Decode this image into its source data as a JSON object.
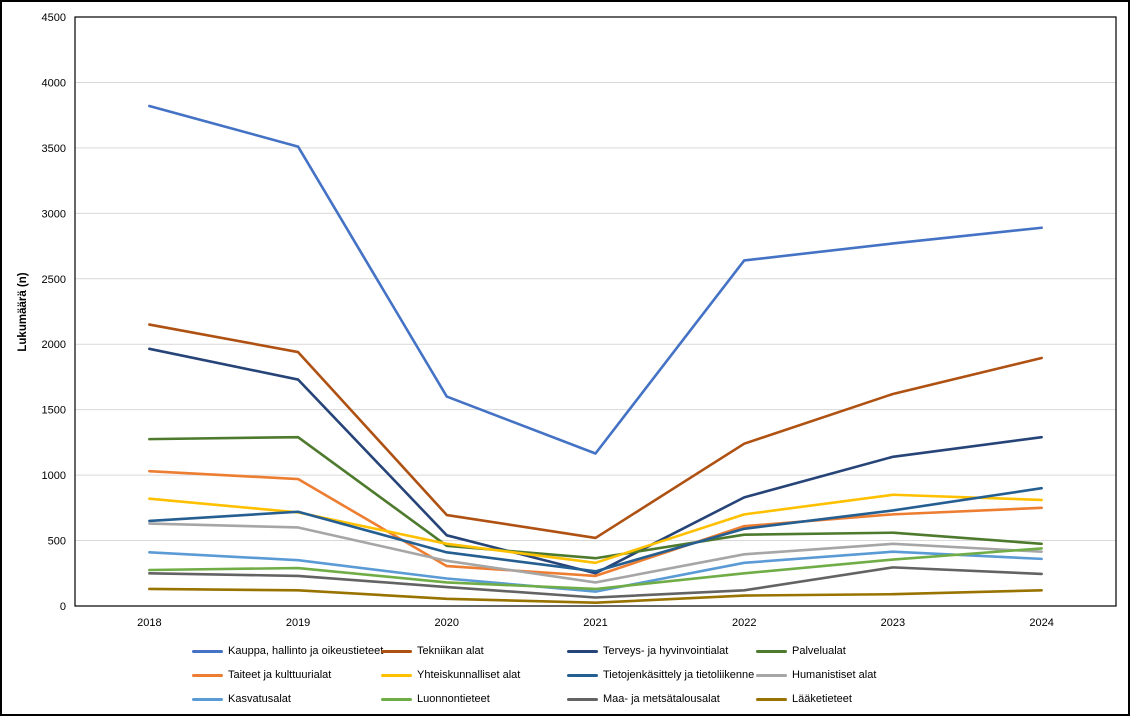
{
  "figure": {
    "background": "#FFFFFF",
    "border_color": "#000000",
    "grid_color": "#D9D9D9",
    "axis_color": "#000000"
  },
  "chart_data": {
    "type": "line",
    "title": "",
    "xlabel": "",
    "ylabel": "Lukumäärä (n)",
    "ylim": [
      0,
      4500
    ],
    "ytick_step": 500,
    "yticks": [
      0,
      500,
      1000,
      1500,
      2000,
      2500,
      3000,
      3500,
      4000,
      4500
    ],
    "grid": true,
    "legend_position": "bottom",
    "legend_columns": 4,
    "categories": [
      "2018",
      "2019",
      "2020",
      "2021",
      "2022",
      "2023",
      "2024"
    ],
    "series": [
      {
        "name": "Kauppa, hallinto ja oikeustieteet",
        "color": "#4472C4",
        "values": [
          3820,
          3510,
          1600,
          1165,
          2640,
          2770,
          2890
        ]
      },
      {
        "name": "Tekniikan alat",
        "color": "#AE5112",
        "values": [
          2150,
          1940,
          695,
          520,
          1240,
          1620,
          1895
        ]
      },
      {
        "name": "Terveys- ja hyvinvointialat",
        "color": "#264478",
        "values": [
          1965,
          1730,
          540,
          250,
          830,
          1140,
          1290
        ]
      },
      {
        "name": "Palvelualat",
        "color": "#4E7A2E",
        "values": [
          1275,
          1290,
          460,
          365,
          545,
          560,
          475
        ]
      },
      {
        "name": "Taiteet ja kulttuurialat",
        "color": "#ED7D31",
        "values": [
          1030,
          970,
          305,
          230,
          610,
          700,
          750
        ]
      },
      {
        "name": "Yhteiskunnalliset alat",
        "color": "#FFC000",
        "values": [
          820,
          715,
          475,
          330,
          700,
          850,
          810
        ]
      },
      {
        "name": "Tietojenkäsittely ja tietoliikenne",
        "color": "#255E91",
        "values": [
          650,
          720,
          410,
          265,
          590,
          730,
          900
        ]
      },
      {
        "name": "Humanistiset alat",
        "color": "#A6A6A6",
        "values": [
          630,
          600,
          345,
          180,
          395,
          475,
          415
        ]
      },
      {
        "name": "Kasvatusalat",
        "color": "#5B9BD5",
        "values": [
          410,
          350,
          210,
          110,
          330,
          415,
          360
        ]
      },
      {
        "name": "Luonnontieteet",
        "color": "#70AD47",
        "values": [
          275,
          290,
          180,
          130,
          250,
          355,
          440
        ]
      },
      {
        "name": "Maa- ja metsätalousalat",
        "color": "#636363",
        "values": [
          250,
          230,
          145,
          65,
          120,
          295,
          245
        ]
      },
      {
        "name": "Lääketieteet",
        "color": "#997300",
        "values": [
          130,
          120,
          55,
          25,
          80,
          90,
          120
        ]
      }
    ]
  }
}
